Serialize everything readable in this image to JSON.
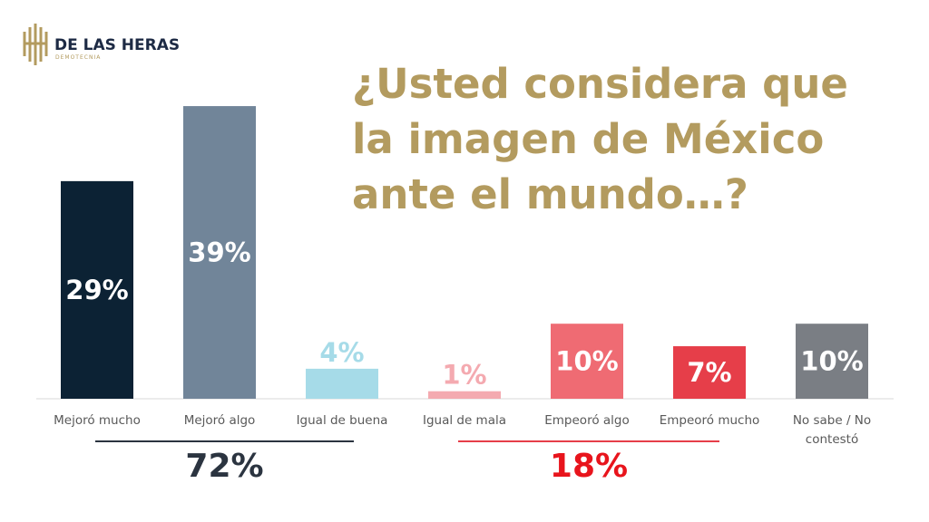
{
  "logo": {
    "name": "DE LAS HERAS",
    "tagline": "DEMOTECNIA"
  },
  "chart_data": {
    "type": "bar",
    "title": "¿Usted considera que la imagen de México ante el mundo…?",
    "categories": [
      "Mejoró mucho",
      "Mejoró algo",
      "Igual de buena",
      "Igual de mala",
      "Empeoró algo",
      "Empeoró mucho",
      "No sabe / No contestó"
    ],
    "values": [
      29,
      39,
      4,
      1,
      10,
      7,
      10
    ],
    "value_labels": [
      "29%",
      "39%",
      "4%",
      "1%",
      "10%",
      "7%",
      "10%"
    ],
    "colors": [
      "#0c2234",
      "#718599",
      "#a6dbe8",
      "#f4aab0",
      "#ef6b73",
      "#e63e49",
      "#7a7e84"
    ],
    "groups": [
      {
        "label": "72%",
        "color": "#2b3440",
        "label_color": "#2b3440"
      },
      {
        "label": "18%",
        "color": "#e63e49",
        "label_color": "#e8141c"
      }
    ]
  }
}
